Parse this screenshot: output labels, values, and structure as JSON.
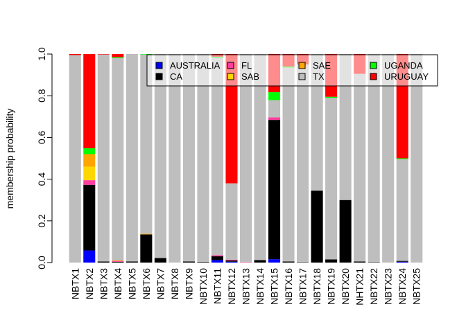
{
  "chart_data": {
    "type": "bar",
    "stacked": true,
    "title": "",
    "xlabel": "",
    "ylabel": "membership probability",
    "ylim": [
      0,
      1
    ],
    "yticks": [
      0.0,
      0.2,
      0.4,
      0.6,
      0.8,
      1.0
    ],
    "ytick_labels": [
      "0.0",
      "0.2",
      "0.4",
      "0.6",
      "0.8",
      "1.0"
    ],
    "categories": [
      "NBTX1",
      "NBTX2",
      "NBTX3",
      "NBTX4",
      "NBTX5",
      "NBTX6",
      "NBTX7",
      "NBTX8",
      "NBTX9",
      "NBTX10",
      "NBTX11",
      "NBTX12",
      "NBTX13",
      "NBTX14",
      "NBTX15",
      "NBTX16",
      "NBTX17",
      "NBTX18",
      "NBTX19",
      "NBTX20",
      "NHTX21",
      "NBTX22",
      "NBTX23",
      "NBTX24",
      "NBTX25"
    ],
    "legend_position": "top-right",
    "legend_columns": 4,
    "series": [
      {
        "name": "AUSTRALIA",
        "color": "#0000FF",
        "values": [
          0,
          0.058,
          0,
          0,
          0,
          0,
          0,
          0,
          0,
          0,
          0.012,
          0.004,
          0,
          0,
          0.016,
          0,
          0,
          0,
          0,
          0,
          0,
          0,
          0,
          0.004,
          0
        ]
      },
      {
        "name": "CA",
        "color": "#000000",
        "values": [
          0,
          0.315,
          0.005,
          0.004,
          0.005,
          0.135,
          0.022,
          0,
          0.005,
          0.003,
          0.018,
          0.006,
          0,
          0.012,
          0.668,
          0.005,
          0.002,
          0.345,
          0.015,
          0.3,
          0.005,
          0.002,
          0,
          0.004,
          0
        ]
      },
      {
        "name": "FL",
        "color": "#FF3EA0",
        "values": [
          0,
          0.022,
          0,
          0.004,
          0,
          0,
          0,
          0,
          0,
          0,
          0.005,
          0.004,
          0.002,
          0,
          0.012,
          0,
          0,
          0,
          0,
          0,
          0,
          0,
          0,
          0,
          0
        ]
      },
      {
        "name": "SAB",
        "color": "#FFD700",
        "values": [
          0,
          0.065,
          0,
          0,
          0,
          0,
          0,
          0,
          0,
          0,
          0,
          0,
          0,
          0,
          0,
          0,
          0,
          0,
          0,
          0,
          0,
          0,
          0,
          0,
          0
        ]
      },
      {
        "name": "SAE",
        "color": "#FFA500",
        "values": [
          0,
          0.06,
          0,
          0.003,
          0,
          0.003,
          0,
          0,
          0,
          0,
          0,
          0,
          0,
          0,
          0,
          0,
          0,
          0,
          0,
          0,
          0,
          0,
          0,
          0,
          0
        ]
      },
      {
        "name": "TX",
        "color": "#BEBEBE",
        "values": [
          0.995,
          0,
          0.993,
          0.97,
          0.995,
          0.86,
          0.978,
          1.0,
          0.995,
          0.997,
          0.947,
          0.366,
          0.998,
          0.988,
          0.083,
          0.93,
          0.948,
          0.655,
          0.775,
          0.7,
          0.9,
          0.998,
          1.0,
          0.488,
          1.0
        ]
      },
      {
        "name": "UGANDA",
        "color": "#00FF00",
        "values": [
          0,
          0.028,
          0,
          0.004,
          0,
          0.002,
          0,
          0,
          0,
          0,
          0.005,
          0,
          0,
          0,
          0.038,
          0.005,
          0,
          0,
          0.005,
          0,
          0,
          0,
          0,
          0.004,
          0
        ]
      },
      {
        "name": "URUGUAY",
        "color": "#FF0000",
        "values": [
          0.005,
          0.452,
          0.002,
          0.015,
          0,
          0,
          0,
          0,
          0,
          0,
          0.013,
          0.62,
          0,
          0,
          0.183,
          0.06,
          0.05,
          0,
          0.205,
          0,
          0.095,
          0,
          0,
          0.5,
          0
        ]
      }
    ]
  }
}
